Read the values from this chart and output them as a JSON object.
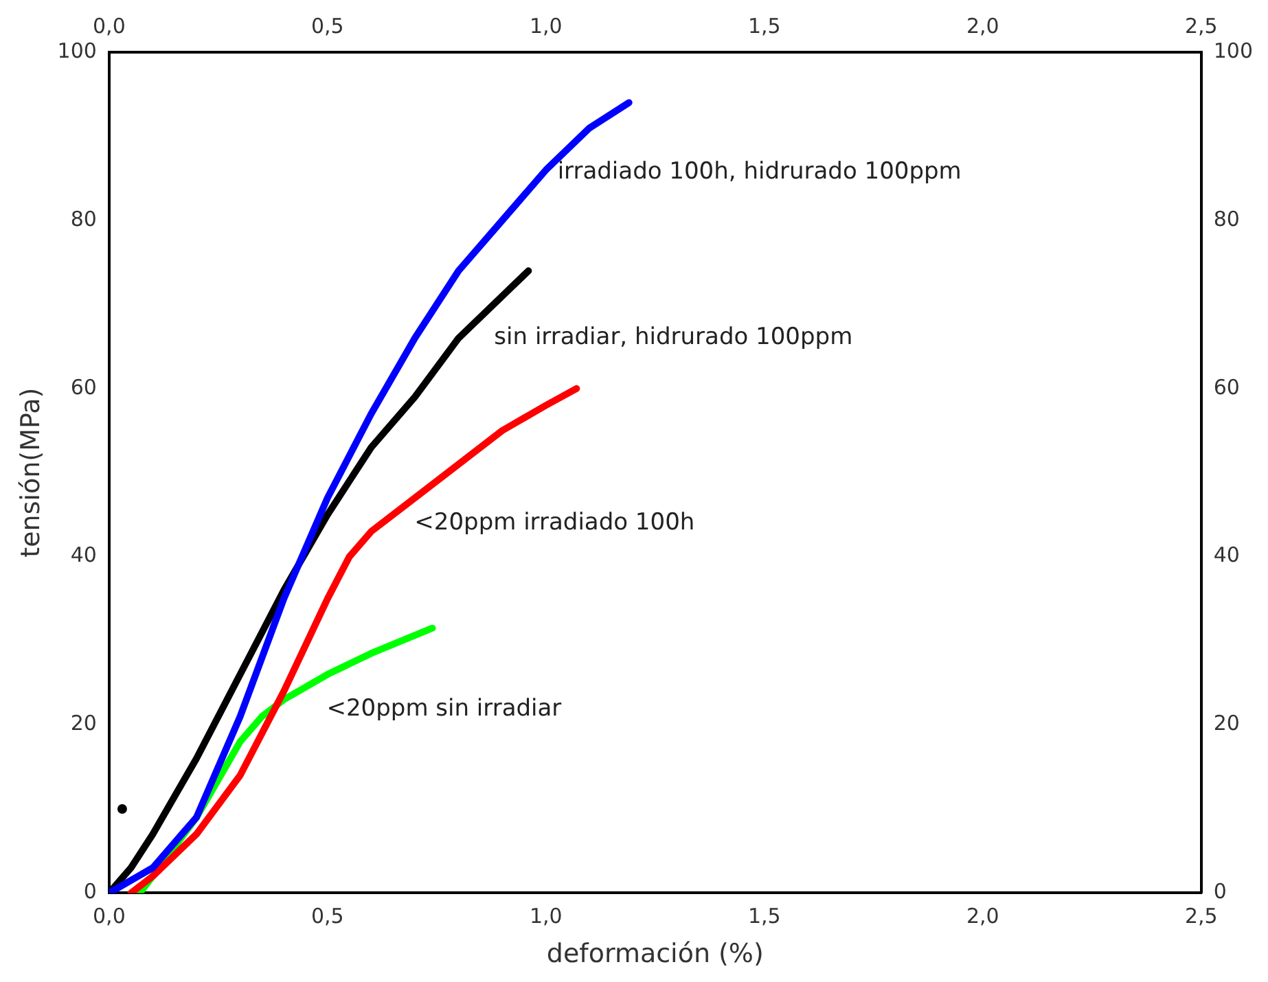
{
  "chart_data": {
    "type": "line",
    "xlabel": "deformación (%)",
    "ylabel": "tensión(MPa)",
    "xlim": [
      0,
      2.5
    ],
    "ylim": [
      0,
      100
    ],
    "x2lim": [
      0,
      2.5
    ],
    "y2lim": [
      0,
      100
    ],
    "xticks": [
      {
        "value": 0,
        "label": "0,0"
      },
      {
        "value": 0.5,
        "label": "0,5"
      },
      {
        "value": 1,
        "label": "1,0"
      },
      {
        "value": 1.5,
        "label": "1,5"
      },
      {
        "value": 2,
        "label": "2,0"
      },
      {
        "value": 2.5,
        "label": "2,5"
      }
    ],
    "x2ticks": [
      {
        "value": 0,
        "label": "0,0"
      },
      {
        "value": 0.5,
        "label": "0,5"
      },
      {
        "value": 1,
        "label": "1,0"
      },
      {
        "value": 1.5,
        "label": "1,5"
      },
      {
        "value": 2,
        "label": "2,0"
      },
      {
        "value": 2.5,
        "label": "2,5"
      }
    ],
    "yticks": [
      0,
      20,
      40,
      60,
      80,
      100
    ],
    "y2ticks": [
      0,
      20,
      40,
      60,
      80,
      100
    ],
    "grid": false,
    "legend": false,
    "marker": "none",
    "series": [
      {
        "name": "irradiado 100h, hidrurado 100ppm",
        "color": "#0000ff",
        "x": [
          0,
          0.1,
          0.2,
          0.3,
          0.4,
          0.5,
          0.6,
          0.7,
          0.8,
          0.9,
          1.0,
          1.1,
          1.19
        ],
        "values": [
          0,
          3,
          9,
          21,
          35,
          47,
          57,
          66,
          74,
          80,
          86,
          91,
          94
        ]
      },
      {
        "name": "sin irradiar, hidrurado 100ppm",
        "color": "#000000",
        "x": [
          0,
          0.05,
          0.1,
          0.2,
          0.3,
          0.4,
          0.5,
          0.6,
          0.7,
          0.8,
          0.9,
          0.96
        ],
        "values": [
          0,
          3,
          7,
          16,
          26,
          36,
          45,
          53,
          59,
          66,
          71,
          74
        ]
      },
      {
        "name": "<20ppm irradiado 100h",
        "color": "#ff0000",
        "x": [
          0.05,
          0.1,
          0.2,
          0.3,
          0.4,
          0.5,
          0.55,
          0.6,
          0.7,
          0.8,
          0.9,
          1.0,
          1.07
        ],
        "values": [
          0,
          2,
          7,
          14,
          24,
          35,
          40,
          43,
          47,
          51,
          55,
          58,
          60
        ]
      },
      {
        "name": "<20ppm sin irradiar",
        "color": "#00ff00",
        "x": [
          0.07,
          0.1,
          0.2,
          0.3,
          0.35,
          0.4,
          0.5,
          0.6,
          0.74
        ],
        "values": [
          0,
          2,
          9,
          18,
          21,
          23,
          26,
          28.5,
          31.5
        ]
      },
      {
        "type": "scatter",
        "marker": "circle",
        "color": "#000000",
        "x": [
          0.03
        ],
        "values": [
          10
        ]
      }
    ]
  }
}
